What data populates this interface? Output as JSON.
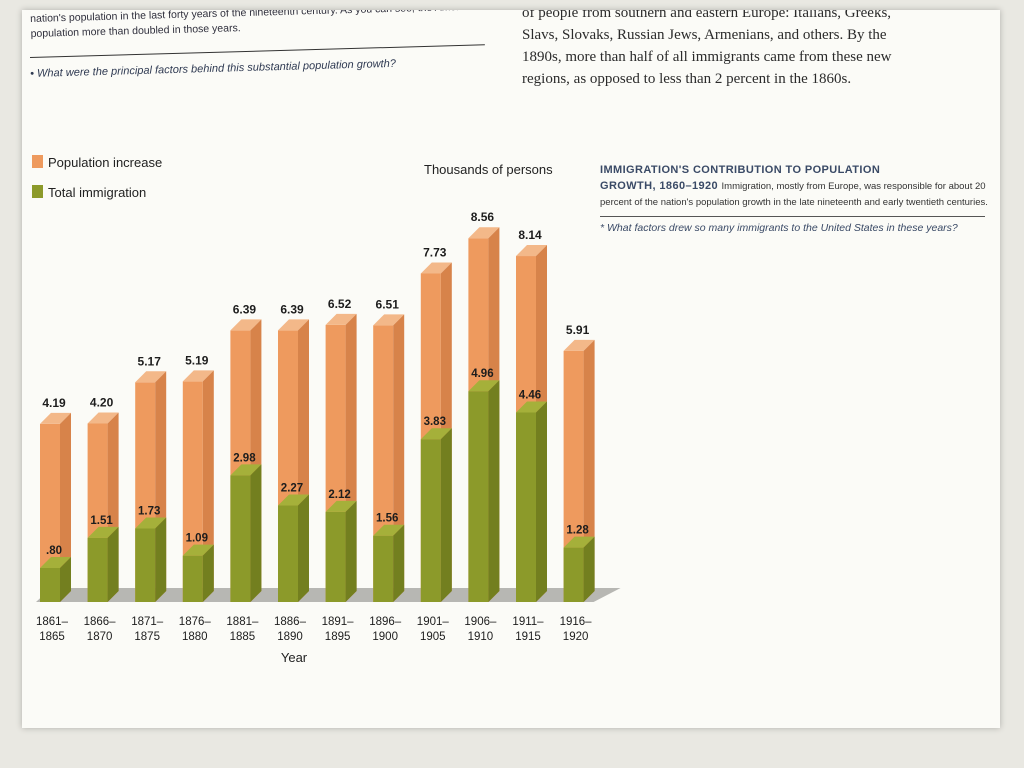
{
  "top_left": {
    "text_line1": "nation's population in the last forty years of the nineteenth century. As you can see, the American",
    "text_line2": "population more than doubled in those years.",
    "question": "What were the principal factors behind this substantial population growth?"
  },
  "top_right": {
    "line1": "of people from southern and eastern Europe: Italians, Greeks,",
    "line2": "Slavs, Slovaks, Russian Jews, Armenians, and others. By the",
    "line3": "1890s, more than half of all immigrants came from these new",
    "line4": "regions, as opposed to less than 2 percent in the 1860s."
  },
  "caption": {
    "title_line1": "IMMIGRATION'S CONTRIBUTION TO POPULATION",
    "title_line2": "GROWTH, 1860–1920",
    "body": "Immigration, mostly from Europe, was responsible for about 20 percent of the nation's population growth in the late nineteenth and early twentieth centuries.",
    "question": "What factors drew so many immigrants to the United States in these years?"
  },
  "colors": {
    "population": "#ee9a5e",
    "population_top": "#f3b889",
    "population_side": "#d7834a",
    "immigration": "#8c9a2a",
    "immigration_top": "#a5b03a",
    "immigration_side": "#737f1f",
    "floor": "#b7b7b3"
  },
  "chart_data": {
    "type": "bar",
    "title": "Thousands of persons",
    "xlabel": "Year",
    "ylabel": "",
    "ylim": [
      0,
      10
    ],
    "legend": [
      "Population increase",
      "Total immigration"
    ],
    "legend_position": "top-left",
    "categories": [
      "1861–1865",
      "1866–1870",
      "1871–1875",
      "1876–1880",
      "1881–1885",
      "1886–1890",
      "1891–1895",
      "1896–1900",
      "1901–1905",
      "1906–1910",
      "1911–1915",
      "1916–1920"
    ],
    "category_top": [
      "1861–",
      "1866–",
      "1871–",
      "1876–",
      "1881–",
      "1886–",
      "1891–",
      "1896–",
      "1901–",
      "1906–",
      "1911–",
      "1916–"
    ],
    "category_bottom": [
      "1865",
      "1870",
      "1875",
      "1880",
      "1885",
      "1890",
      "1895",
      "1900",
      "1905",
      "1910",
      "1915",
      "1920"
    ],
    "series": [
      {
        "name": "Population increase",
        "values": [
          4.19,
          4.2,
          5.17,
          5.19,
          6.39,
          6.39,
          6.52,
          6.51,
          7.73,
          8.56,
          8.14,
          5.91
        ],
        "labels": [
          "4.19",
          "4.20",
          "5.17",
          "5.19",
          "6.39",
          "6.39",
          "6.52",
          "6.51",
          "7.73",
          "8.56",
          "8.14",
          "5.91"
        ]
      },
      {
        "name": "Total immigration",
        "values": [
          0.8,
          1.51,
          1.73,
          1.09,
          2.98,
          2.27,
          2.12,
          1.56,
          3.83,
          4.96,
          4.46,
          1.28
        ],
        "labels": [
          ".80",
          "1.51",
          "1.73",
          "1.09",
          "2.98",
          "2.27",
          "2.12",
          "1.56",
          "3.83",
          "4.96",
          "4.46",
          "1.28"
        ]
      }
    ]
  }
}
